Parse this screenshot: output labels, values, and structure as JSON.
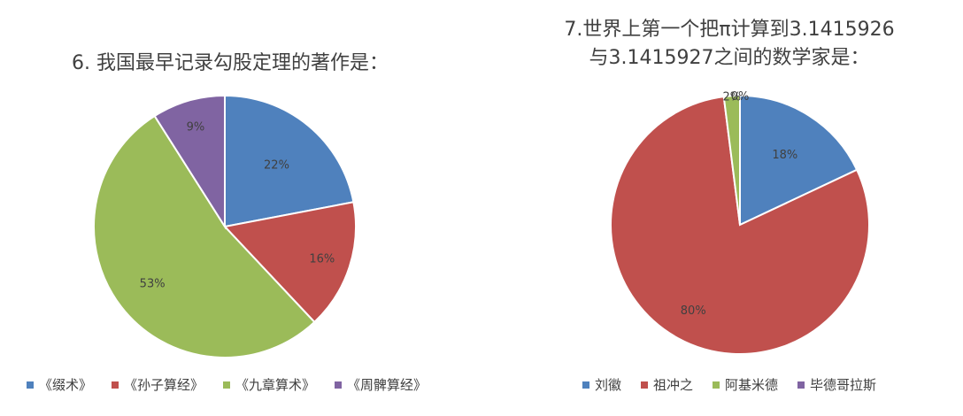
{
  "chart_data": [
    {
      "type": "pie",
      "title": "6. 我国最早记录勾股定理的著作是：",
      "categories": [
        "《缀术》",
        "《孙子算经》",
        "《九章算术》",
        "《周髀算经》"
      ],
      "values": [
        22,
        16,
        53,
        9
      ],
      "data_labels": [
        "22%",
        "16%",
        "53%",
        "9%"
      ],
      "colors": [
        "#4F81BD",
        "#C0504D",
        "#9BBB59",
        "#8064A2"
      ],
      "legend_position": "bottom"
    },
    {
      "type": "pie",
      "title_lines": [
        "7.世界上第一个把π计算到3.1415926",
        "与3.1415927之间的数学家是："
      ],
      "categories": [
        "刘徽",
        "祖冲之",
        "阿基米德",
        "毕德哥拉斯"
      ],
      "values": [
        18,
        80,
        2,
        0
      ],
      "data_labels": [
        "18%",
        "80%",
        "2%",
        "0%"
      ],
      "colors": [
        "#4F81BD",
        "#C0504D",
        "#9BBB59",
        "#8064A2"
      ],
      "legend_position": "bottom"
    }
  ]
}
